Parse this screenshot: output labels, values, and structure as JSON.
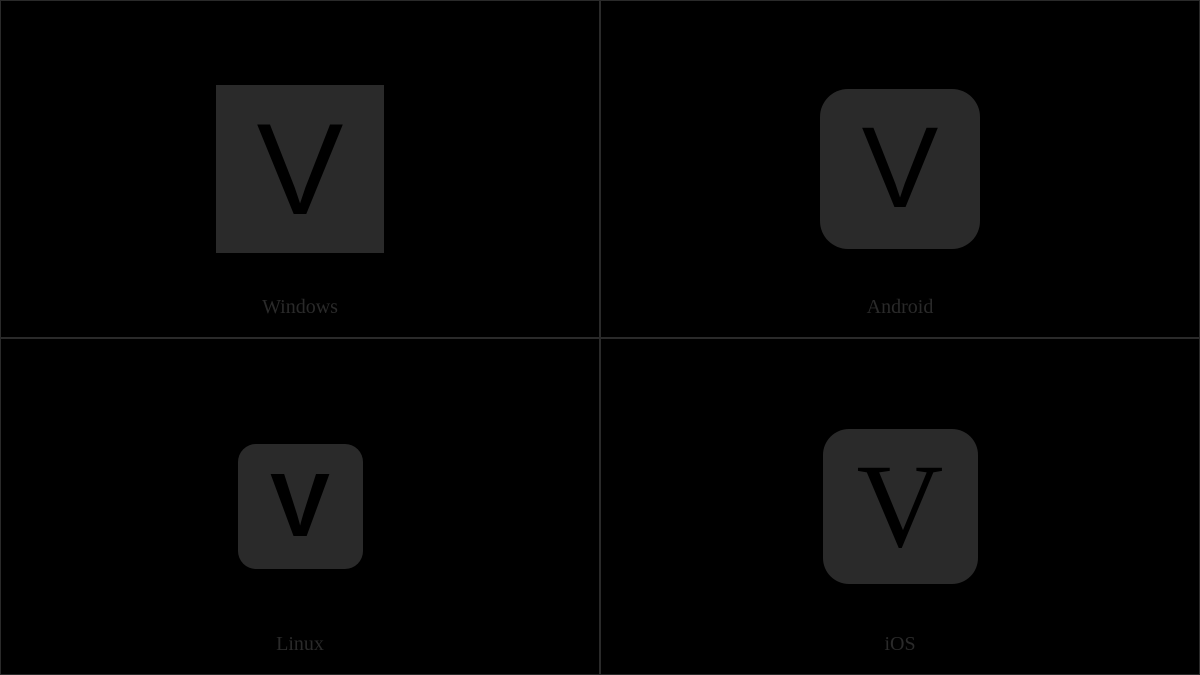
{
  "grid": {
    "cells": [
      {
        "platform_label": "Windows",
        "letter": "V",
        "box_bg": "#2a2a2a",
        "letter_color": "#000000",
        "box_style": "square",
        "border_radius": 0,
        "box_size": 168,
        "font_family": "sans-serif",
        "font_size": 130
      },
      {
        "platform_label": "Android",
        "letter": "V",
        "box_bg": "#2a2a2a",
        "letter_color": "#000000",
        "box_style": "rounded",
        "border_radius": 28,
        "box_size": 160,
        "font_family": "sans-serif",
        "font_size": 115
      },
      {
        "platform_label": "Linux",
        "letter": "V",
        "box_bg": "#2a2a2a",
        "letter_color": "#000000",
        "box_style": "rounded",
        "border_radius": 18,
        "box_size": 125,
        "font_family": "sans-serif",
        "font_size": 90
      },
      {
        "platform_label": "iOS",
        "letter": "V",
        "box_bg": "#2a2a2a",
        "letter_color": "#000000",
        "box_style": "rounded",
        "border_radius": 26,
        "box_size": 155,
        "font_family": "serif",
        "font_size": 120
      }
    ],
    "background_color": "#000000",
    "border_color": "#2a2a2a",
    "label_color": "#2a2a2a",
    "label_font_size": 20
  }
}
